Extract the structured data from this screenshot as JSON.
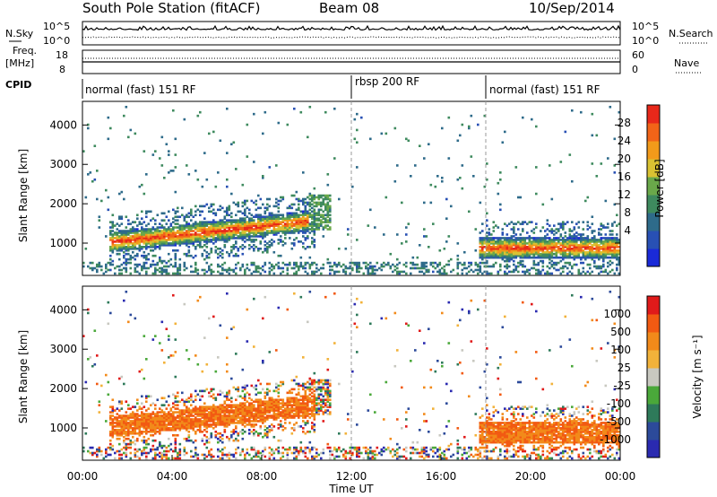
{
  "header": {
    "station": "South Pole Station (fitACF)",
    "beam": "Beam 08",
    "date": "10/Sep/2014"
  },
  "top_panels": {
    "nsky_label": "N.Sky",
    "nsky_ticks": [
      "10^5",
      "10^0"
    ],
    "nsearch_label": "N.Search",
    "nsearch_ticks": [
      "10^5",
      "10^0"
    ],
    "freq_label_1": "Freq.",
    "freq_label_2": "[MHz]",
    "freq_ticks": [
      "18",
      "8"
    ],
    "nave_label": "Nave",
    "nave_ticks": [
      "60",
      "0"
    ],
    "cpid_label": "CPID",
    "cpid_segments": [
      {
        "label": "normal (fast) 151 RF",
        "start": 0,
        "end": 12
      },
      {
        "label": "rbsp 200 RF",
        "start": 12,
        "end": 18
      },
      {
        "label": "normal (fast) 151 RF",
        "start": 18,
        "end": 24
      }
    ]
  },
  "chart_data": [
    {
      "type": "heatmap",
      "title": "",
      "ylabel": "Slant Range [km]",
      "xlabel": "",
      "x_range_hours": [
        0,
        24
      ],
      "ylim": [
        180,
        4600
      ],
      "y_ticks": [
        1000,
        2000,
        3000,
        4000
      ],
      "y_tick_labels": [
        "1000",
        "2000",
        "3000",
        "4000"
      ],
      "colorbar": {
        "label": "Power [dB]",
        "tick_labels": [
          "28",
          "24",
          "20",
          "16",
          "12",
          "8",
          "4"
        ],
        "colors": [
          "#1a2ad8",
          "#2850b4",
          "#2e6b8a",
          "#3e8a5e",
          "#6aa84a",
          "#d9c232",
          "#f29a1a",
          "#f26418",
          "#e8281a"
        ]
      },
      "bands": [
        {
          "name": "main echo",
          "x_start": 1.2,
          "x_end": 10.3,
          "y_center": 1050,
          "y_width": 350,
          "level": 0.85
        },
        {
          "name": "late echo",
          "x_start": 17.6,
          "x_end": 24,
          "y_center": 850,
          "y_width": 300,
          "level": 0.9
        }
      ]
    },
    {
      "type": "heatmap",
      "title": "",
      "ylabel": "Slant Range [km]",
      "xlabel": "Time UT",
      "x_range_hours": [
        0,
        24
      ],
      "x_tick_labels": [
        "00:00",
        "04:00",
        "08:00",
        "12:00",
        "16:00",
        "20:00",
        "00:00"
      ],
      "ylim": [
        180,
        4600
      ],
      "y_ticks": [
        1000,
        2000,
        3000,
        4000
      ],
      "y_tick_labels": [
        "1000",
        "2000",
        "3000",
        "4000"
      ],
      "colorbar": {
        "label": "Velocity [m s⁻¹]",
        "tick_labels": [
          "1000",
          "500",
          "100",
          "25",
          "-25",
          "-100",
          "-500",
          "-1000"
        ],
        "colors": [
          "#2a2ab0",
          "#2c4a9a",
          "#2e7a5a",
          "#4aa83a",
          "#c8c8c0",
          "#f2b23a",
          "#f28a1a",
          "#f25a12",
          "#e01a1a"
        ]
      }
    }
  ]
}
